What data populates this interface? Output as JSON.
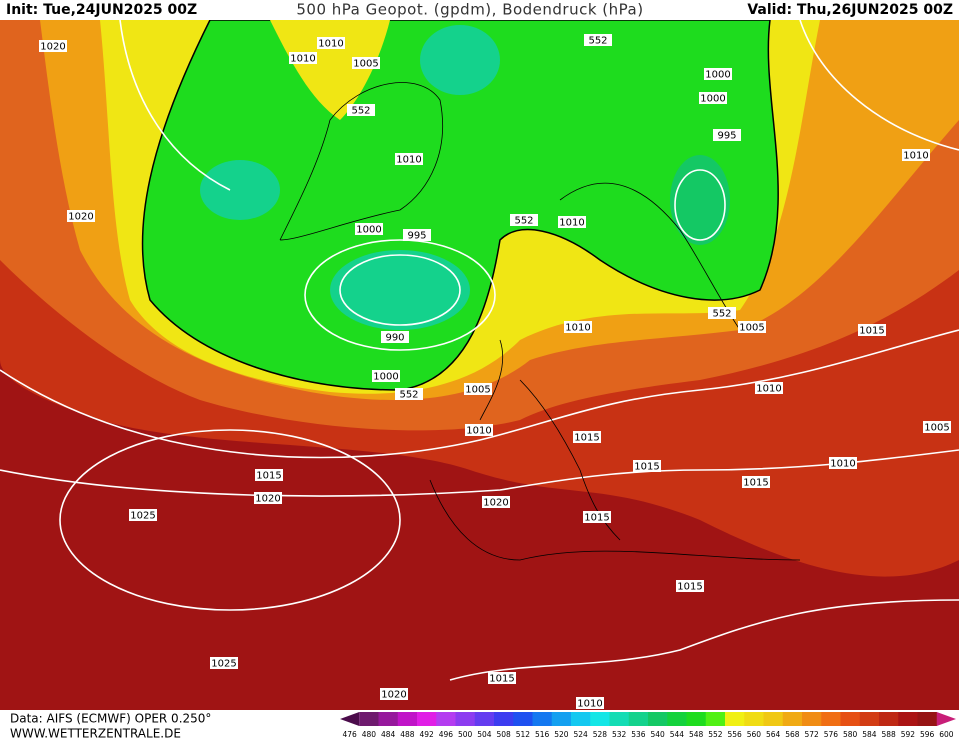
{
  "header": {
    "init": "Init: Tue,24JUN2025 00Z",
    "title": "500 hPa Geopot. (gpdm), Bodendruck (hPa)",
    "valid": "Valid: Thu,26JUN2025 00Z"
  },
  "isobar_labels": [
    1020,
    1010,
    1010,
    1005,
    552,
    1000,
    1000,
    552,
    995,
    1010,
    1010,
    1020,
    552,
    1010,
    1000,
    995,
    1010,
    552,
    1005,
    1015,
    990,
    1000,
    1005,
    552,
    1010,
    1010,
    1015,
    1005,
    1015,
    1010,
    1015,
    1015,
    1020,
    1020,
    1015,
    1025,
    1015,
    1025,
    1015,
    1020,
    1010
  ],
  "colorbar": {
    "values": [
      476,
      480,
      484,
      488,
      492,
      496,
      500,
      504,
      508,
      512,
      516,
      520,
      524,
      528,
      532,
      536,
      540,
      544,
      548,
      552,
      556,
      560,
      564,
      568,
      572,
      576,
      580,
      584,
      588,
      592,
      596,
      600
    ],
    "colors": [
      "#4b0c4b",
      "#6e1a6e",
      "#96189c",
      "#c014c8",
      "#e01ee6",
      "#b43cf0",
      "#8c3cf0",
      "#643cf0",
      "#3c3cf0",
      "#1e50f0",
      "#1478f0",
      "#14a0f0",
      "#14c8f0",
      "#14e6e6",
      "#14dcb4",
      "#14d28c",
      "#14c864",
      "#14d23c",
      "#1edc1e",
      "#50f014",
      "#f0f014",
      "#f0dc14",
      "#f0c814",
      "#f0aa14",
      "#f08c14",
      "#f06e14",
      "#e65014",
      "#d23c14",
      "#be2814",
      "#aa1414",
      "#961414",
      "#c81e78"
    ]
  },
  "footer": {
    "source": "Data: AIFS (ECMWF) OPER 0.250°",
    "site": "WWW.WETTERZENTRALE.DE"
  }
}
